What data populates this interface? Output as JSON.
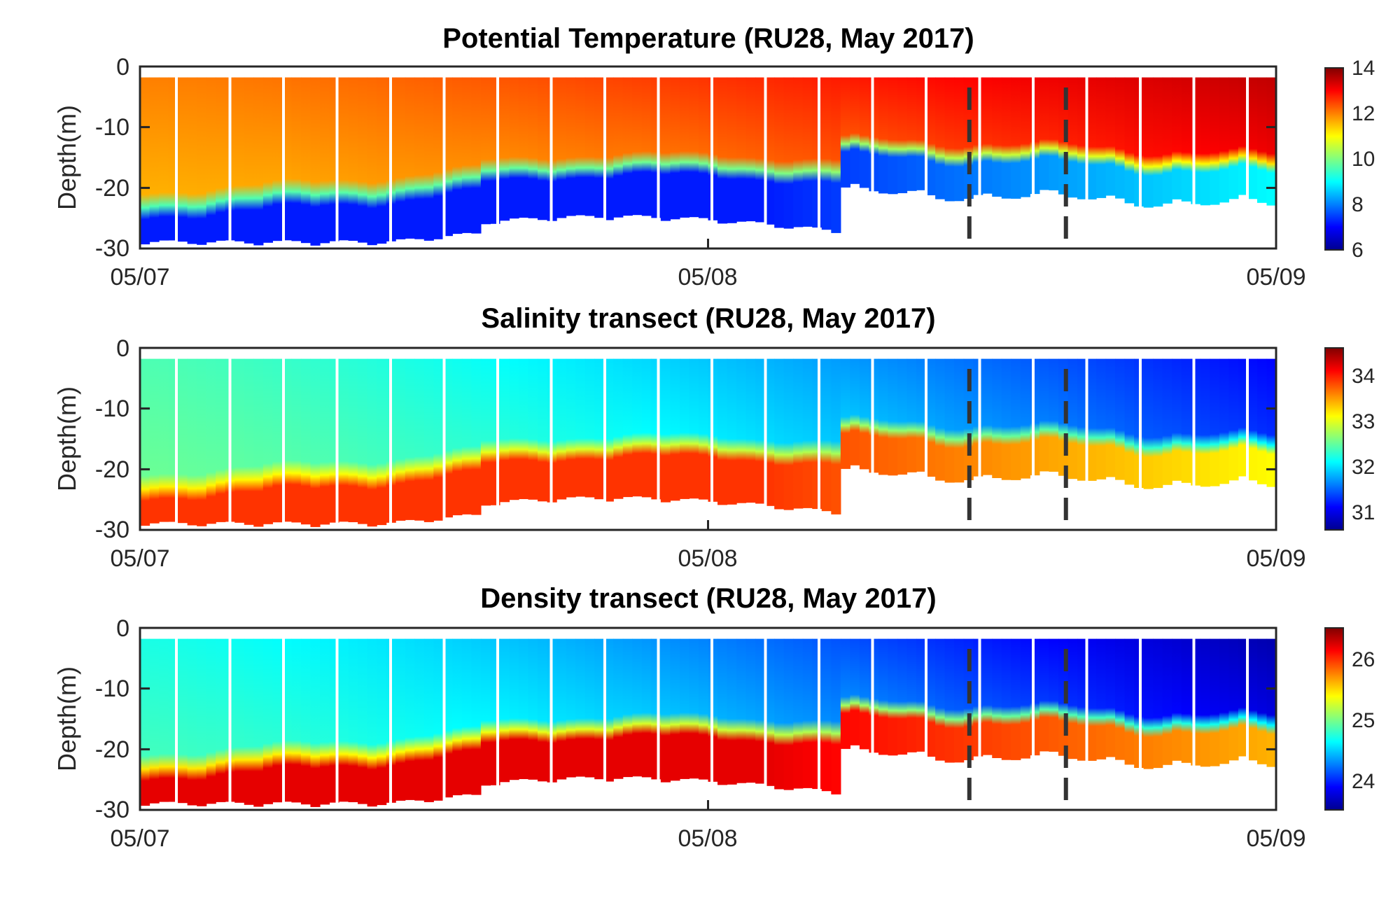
{
  "colormap": [
    "#00008f",
    "#0000ff",
    "#0080ff",
    "#00ffff",
    "#80ff80",
    "#ffff00",
    "#ff8000",
    "#ff0000",
    "#800000"
  ],
  "dashed_line_color": "#333333",
  "chart_data": [
    {
      "type": "heatmap",
      "title": "Potential Temperature (RU28, May 2017)",
      "xlabel": "",
      "ylabel": "Depth(m)",
      "x_ticks": [
        "05/07",
        "05/08",
        "05/09"
      ],
      "y_ticks": [
        "0",
        "-10",
        "-20",
        "-30"
      ],
      "ylim": [
        -30,
        0
      ],
      "colorbar_ticks": [
        "6",
        "8",
        "10",
        "12",
        "14"
      ],
      "clim": [
        6,
        14
      ],
      "surface": 12.0,
      "surface_end": 13.5,
      "bottom": 7.2,
      "bottom_end": 9.0,
      "vertical_markers": [
        0.73,
        0.815
      ]
    },
    {
      "type": "heatmap",
      "title": "Salinity transect (RU28, May 2017)",
      "xlabel": "",
      "ylabel": "Depth(m)",
      "x_ticks": [
        "05/07",
        "05/08",
        "05/09"
      ],
      "y_ticks": [
        "0",
        "-10",
        "-20",
        "-30"
      ],
      "ylim": [
        -30,
        0
      ],
      "colorbar_ticks": [
        "31",
        "32",
        "33",
        "34"
      ],
      "clim": [
        30.5,
        34.5
      ],
      "surface": 32.3,
      "surface_end": 31.0,
      "bottom": 33.8,
      "bottom_end": 33.0,
      "vertical_markers": [
        0.73,
        0.815
      ]
    },
    {
      "type": "heatmap",
      "title": "Density transect (RU28, May 2017)",
      "xlabel": "",
      "ylabel": "Depth(m)",
      "x_ticks": [
        "05/07",
        "05/08",
        "05/09"
      ],
      "y_ticks": [
        "0",
        "-10",
        "-20",
        "-30"
      ],
      "ylim": [
        -30,
        0
      ],
      "colorbar_ticks": [
        "24",
        "25",
        "26"
      ],
      "clim": [
        23.5,
        26.5
      ],
      "surface": 24.7,
      "surface_end": 23.6,
      "bottom": 26.2,
      "bottom_end": 25.6,
      "vertical_markers": [
        0.73,
        0.815
      ]
    }
  ]
}
